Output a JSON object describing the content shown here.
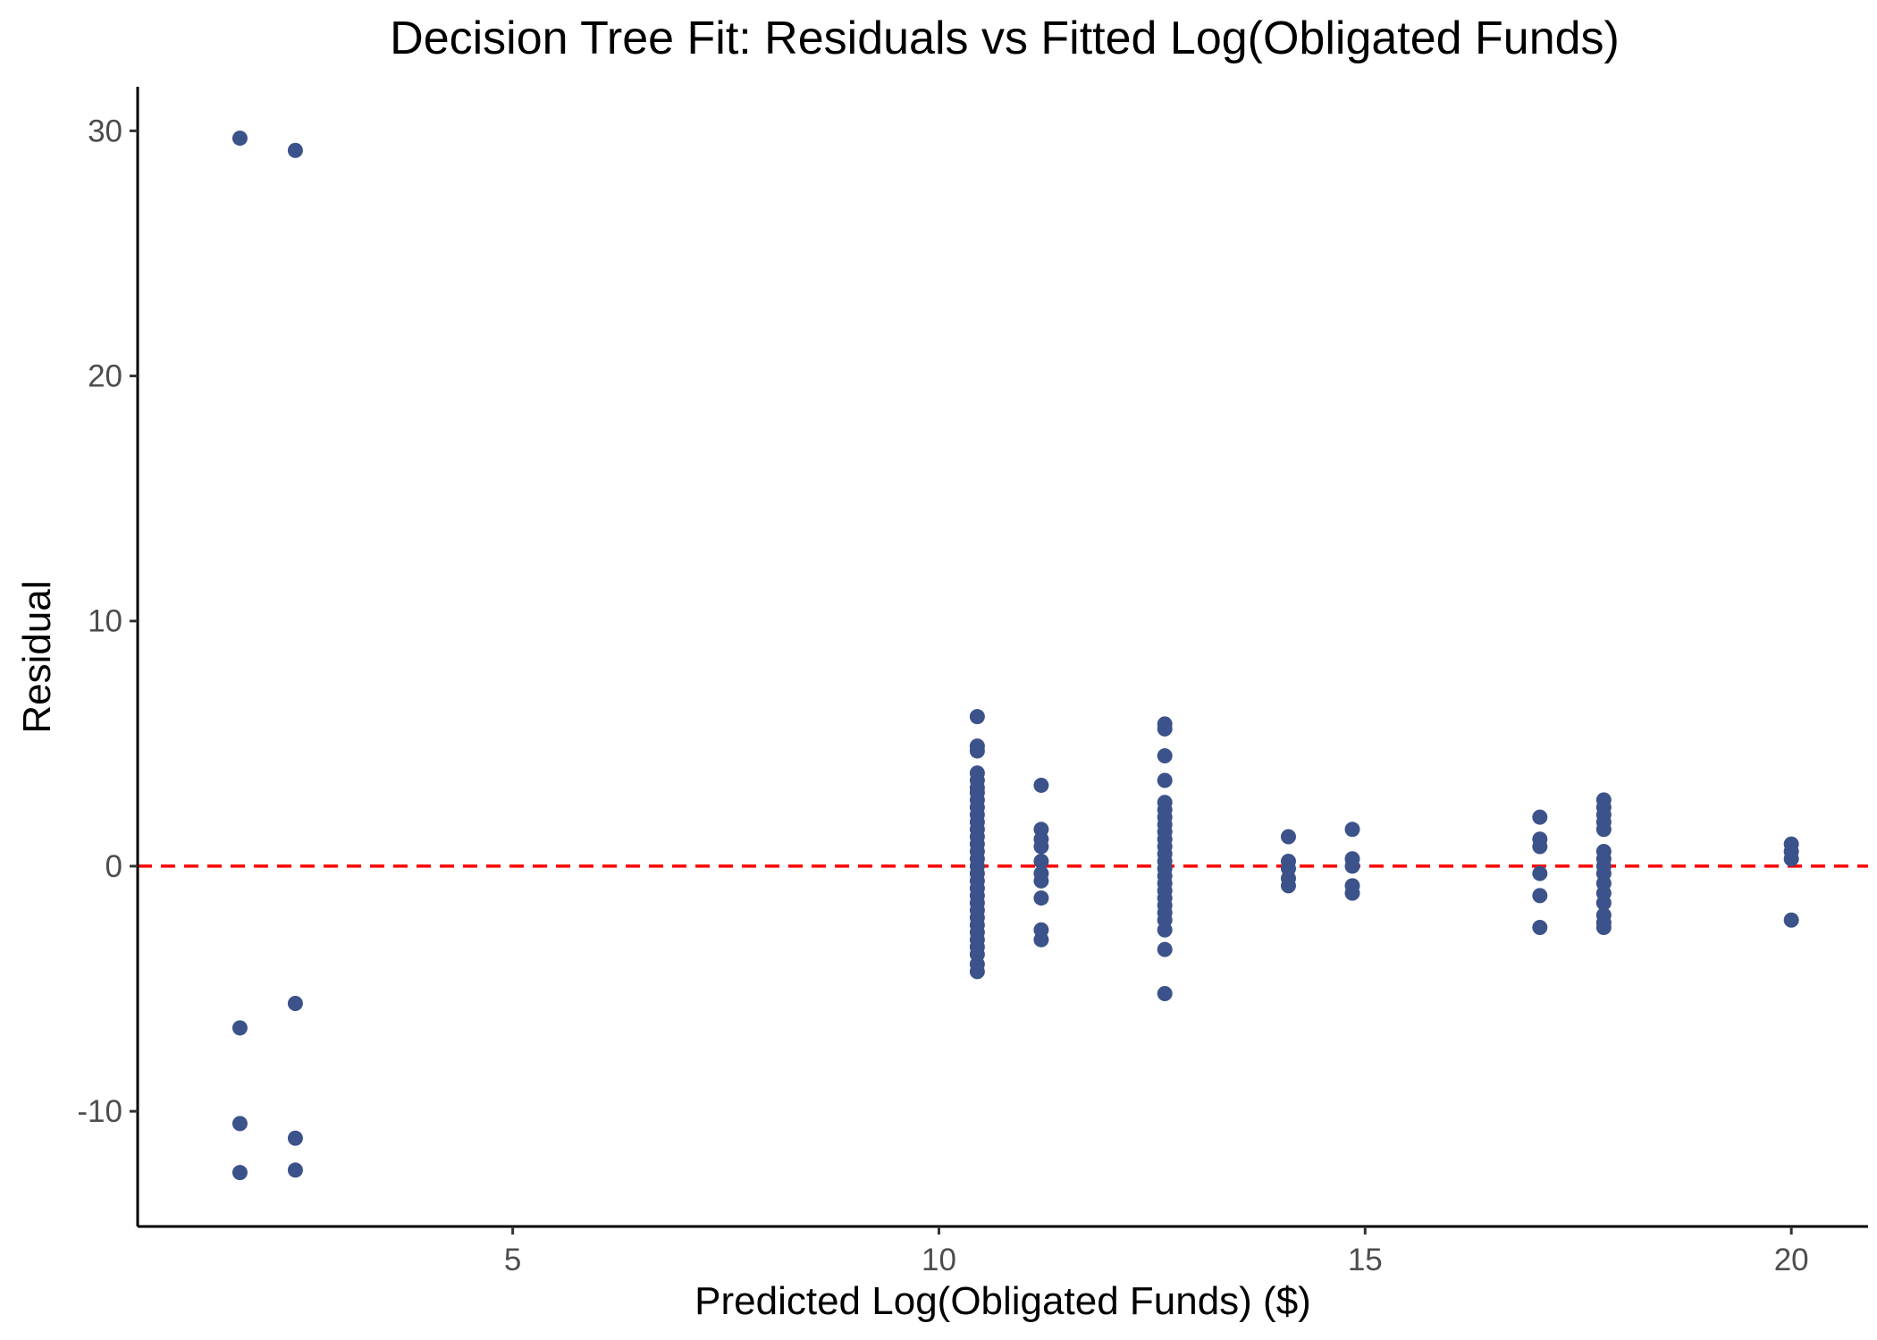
{
  "chart_data": {
    "type": "scatter",
    "title": "Decision Tree Fit: Residuals vs Fitted Log(Obligated Funds)",
    "xlabel": "Predicted Log(Obligated Funds) ($)",
    "ylabel": "Residual",
    "xlim": [
      0.6,
      20.9
    ],
    "ylim": [
      -14.7,
      31.8
    ],
    "xticks": [
      5,
      10,
      15,
      20
    ],
    "yticks": [
      -10,
      0,
      10,
      20,
      30
    ],
    "grid": false,
    "reference_line": {
      "y": 0,
      "style": "dashed",
      "color": "#FF0000"
    },
    "point_color": "#3B528B",
    "points": [
      [
        1.8,
        29.7
      ],
      [
        1.8,
        -6.6
      ],
      [
        1.8,
        -10.5
      ],
      [
        1.8,
        -12.5
      ],
      [
        2.45,
        29.2
      ],
      [
        2.45,
        -5.6
      ],
      [
        2.45,
        -11.1
      ],
      [
        2.45,
        -12.4
      ],
      [
        10.45,
        6.1
      ],
      [
        10.45,
        4.9
      ],
      [
        10.45,
        4.7
      ],
      [
        10.45,
        3.8
      ],
      [
        10.45,
        3.5
      ],
      [
        10.45,
        3.2
      ],
      [
        10.45,
        3.0
      ],
      [
        10.45,
        2.7
      ],
      [
        10.45,
        2.4
      ],
      [
        10.45,
        2.1
      ],
      [
        10.45,
        1.8
      ],
      [
        10.45,
        1.5
      ],
      [
        10.45,
        1.2
      ],
      [
        10.45,
        0.9
      ],
      [
        10.45,
        0.6
      ],
      [
        10.45,
        0.3
      ],
      [
        10.45,
        0.0
      ],
      [
        10.45,
        -0.3
      ],
      [
        10.45,
        -0.6
      ],
      [
        10.45,
        -0.9
      ],
      [
        10.45,
        -1.2
      ],
      [
        10.45,
        -1.5
      ],
      [
        10.45,
        -1.8
      ],
      [
        10.45,
        -2.1
      ],
      [
        10.45,
        -2.4
      ],
      [
        10.45,
        -2.7
      ],
      [
        10.45,
        -3.0
      ],
      [
        10.45,
        -3.3
      ],
      [
        10.45,
        -3.6
      ],
      [
        10.45,
        -4.0
      ],
      [
        10.45,
        -4.3
      ],
      [
        11.2,
        3.3
      ],
      [
        11.2,
        1.5
      ],
      [
        11.2,
        1.1
      ],
      [
        11.2,
        0.8
      ],
      [
        11.2,
        0.2
      ],
      [
        11.2,
        -0.3
      ],
      [
        11.2,
        -0.6
      ],
      [
        11.2,
        -1.3
      ],
      [
        11.2,
        -2.6
      ],
      [
        11.2,
        -3.0
      ],
      [
        12.65,
        5.8
      ],
      [
        12.65,
        5.6
      ],
      [
        12.65,
        4.5
      ],
      [
        12.65,
        3.5
      ],
      [
        12.65,
        2.6
      ],
      [
        12.65,
        2.3
      ],
      [
        12.65,
        2.0
      ],
      [
        12.65,
        1.7
      ],
      [
        12.65,
        1.4
      ],
      [
        12.65,
        1.1
      ],
      [
        12.65,
        0.8
      ],
      [
        12.65,
        0.5
      ],
      [
        12.65,
        0.2
      ],
      [
        12.65,
        -0.1
      ],
      [
        12.65,
        -0.4
      ],
      [
        12.65,
        -0.7
      ],
      [
        12.65,
        -1.0
      ],
      [
        12.65,
        -1.3
      ],
      [
        12.65,
        -1.6
      ],
      [
        12.65,
        -1.9
      ],
      [
        12.65,
        -2.2
      ],
      [
        12.65,
        -2.6
      ],
      [
        12.65,
        -3.4
      ],
      [
        12.65,
        -5.2
      ],
      [
        14.1,
        1.2
      ],
      [
        14.1,
        0.2
      ],
      [
        14.1,
        -0.1
      ],
      [
        14.1,
        -0.5
      ],
      [
        14.1,
        -0.8
      ],
      [
        14.85,
        1.5
      ],
      [
        14.85,
        0.3
      ],
      [
        14.85,
        0.0
      ],
      [
        14.85,
        -0.8
      ],
      [
        14.85,
        -1.1
      ],
      [
        17.05,
        2.0
      ],
      [
        17.05,
        1.1
      ],
      [
        17.05,
        0.8
      ],
      [
        17.05,
        -0.3
      ],
      [
        17.05,
        -1.2
      ],
      [
        17.05,
        -2.5
      ],
      [
        17.8,
        2.7
      ],
      [
        17.8,
        2.4
      ],
      [
        17.8,
        2.1
      ],
      [
        17.8,
        1.8
      ],
      [
        17.8,
        1.5
      ],
      [
        17.8,
        0.6
      ],
      [
        17.8,
        0.3
      ],
      [
        17.8,
        0.0
      ],
      [
        17.8,
        -0.3
      ],
      [
        17.8,
        -0.7
      ],
      [
        17.8,
        -1.1
      ],
      [
        17.8,
        -1.5
      ],
      [
        17.8,
        -2.0
      ],
      [
        17.8,
        -2.3
      ],
      [
        17.8,
        -2.5
      ],
      [
        20.0,
        0.9
      ],
      [
        20.0,
        0.6
      ],
      [
        20.0,
        0.3
      ],
      [
        20.0,
        -2.2
      ]
    ]
  }
}
